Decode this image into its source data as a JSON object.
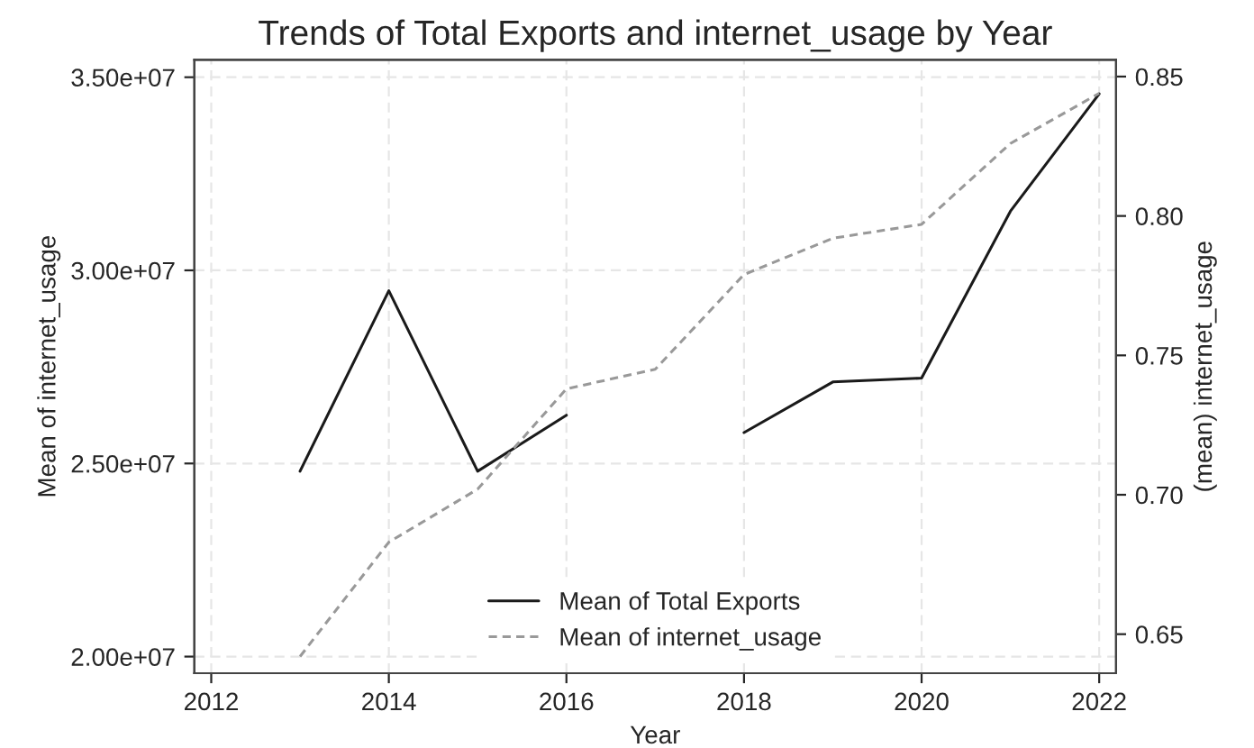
{
  "chart_data": {
    "type": "line",
    "title": "Trends of Total Exports and internet_usage by Year",
    "xlabel": "Year",
    "ylabel": "Mean of internet_usage",
    "y2label": "(mean) internet_usage",
    "x": [
      2013,
      2014,
      2015,
      2016,
      2017,
      2018,
      2019,
      2020,
      2021,
      2022
    ],
    "series": [
      {
        "name": "Mean of Total Exports",
        "color": "#1a1a1a",
        "line_style": "solid",
        "values": [
          24800000,
          29470000,
          24800000,
          26250000,
          null,
          25800000,
          27110000,
          27210000,
          31530000,
          34570000
        ]
      },
      {
        "name": "Mean of internet_usage",
        "color": "#999999",
        "line_style": "dashed",
        "axis": "y2",
        "values": [
          0.642,
          0.683,
          0.702,
          0.738,
          0.745,
          0.779,
          0.792,
          0.797,
          0.826,
          0.844
        ]
      }
    ],
    "xlim": [
      2011.81,
      2022.19
    ],
    "xticks": [
      2012,
      2014,
      2016,
      2018,
      2020,
      2022
    ],
    "ylim": [
      19570000,
      35450000
    ],
    "yticks": [
      {
        "value": 20000000,
        "label": "2.00e+07"
      },
      {
        "value": 25000000,
        "label": "2.50e+07"
      },
      {
        "value": 30000000,
        "label": "3.00e+07"
      },
      {
        "value": 35000000,
        "label": "3.50e+07"
      }
    ],
    "y2lim": [
      0.636,
      0.856
    ],
    "y2ticks": [
      {
        "value": 0.65,
        "label": "0.65"
      },
      {
        "value": 0.7,
        "label": "0.70"
      },
      {
        "value": 0.75,
        "label": "0.75"
      },
      {
        "value": 0.8,
        "label": "0.80"
      },
      {
        "value": 0.85,
        "label": "0.85"
      }
    ],
    "grid": true,
    "legend": "bottom"
  }
}
